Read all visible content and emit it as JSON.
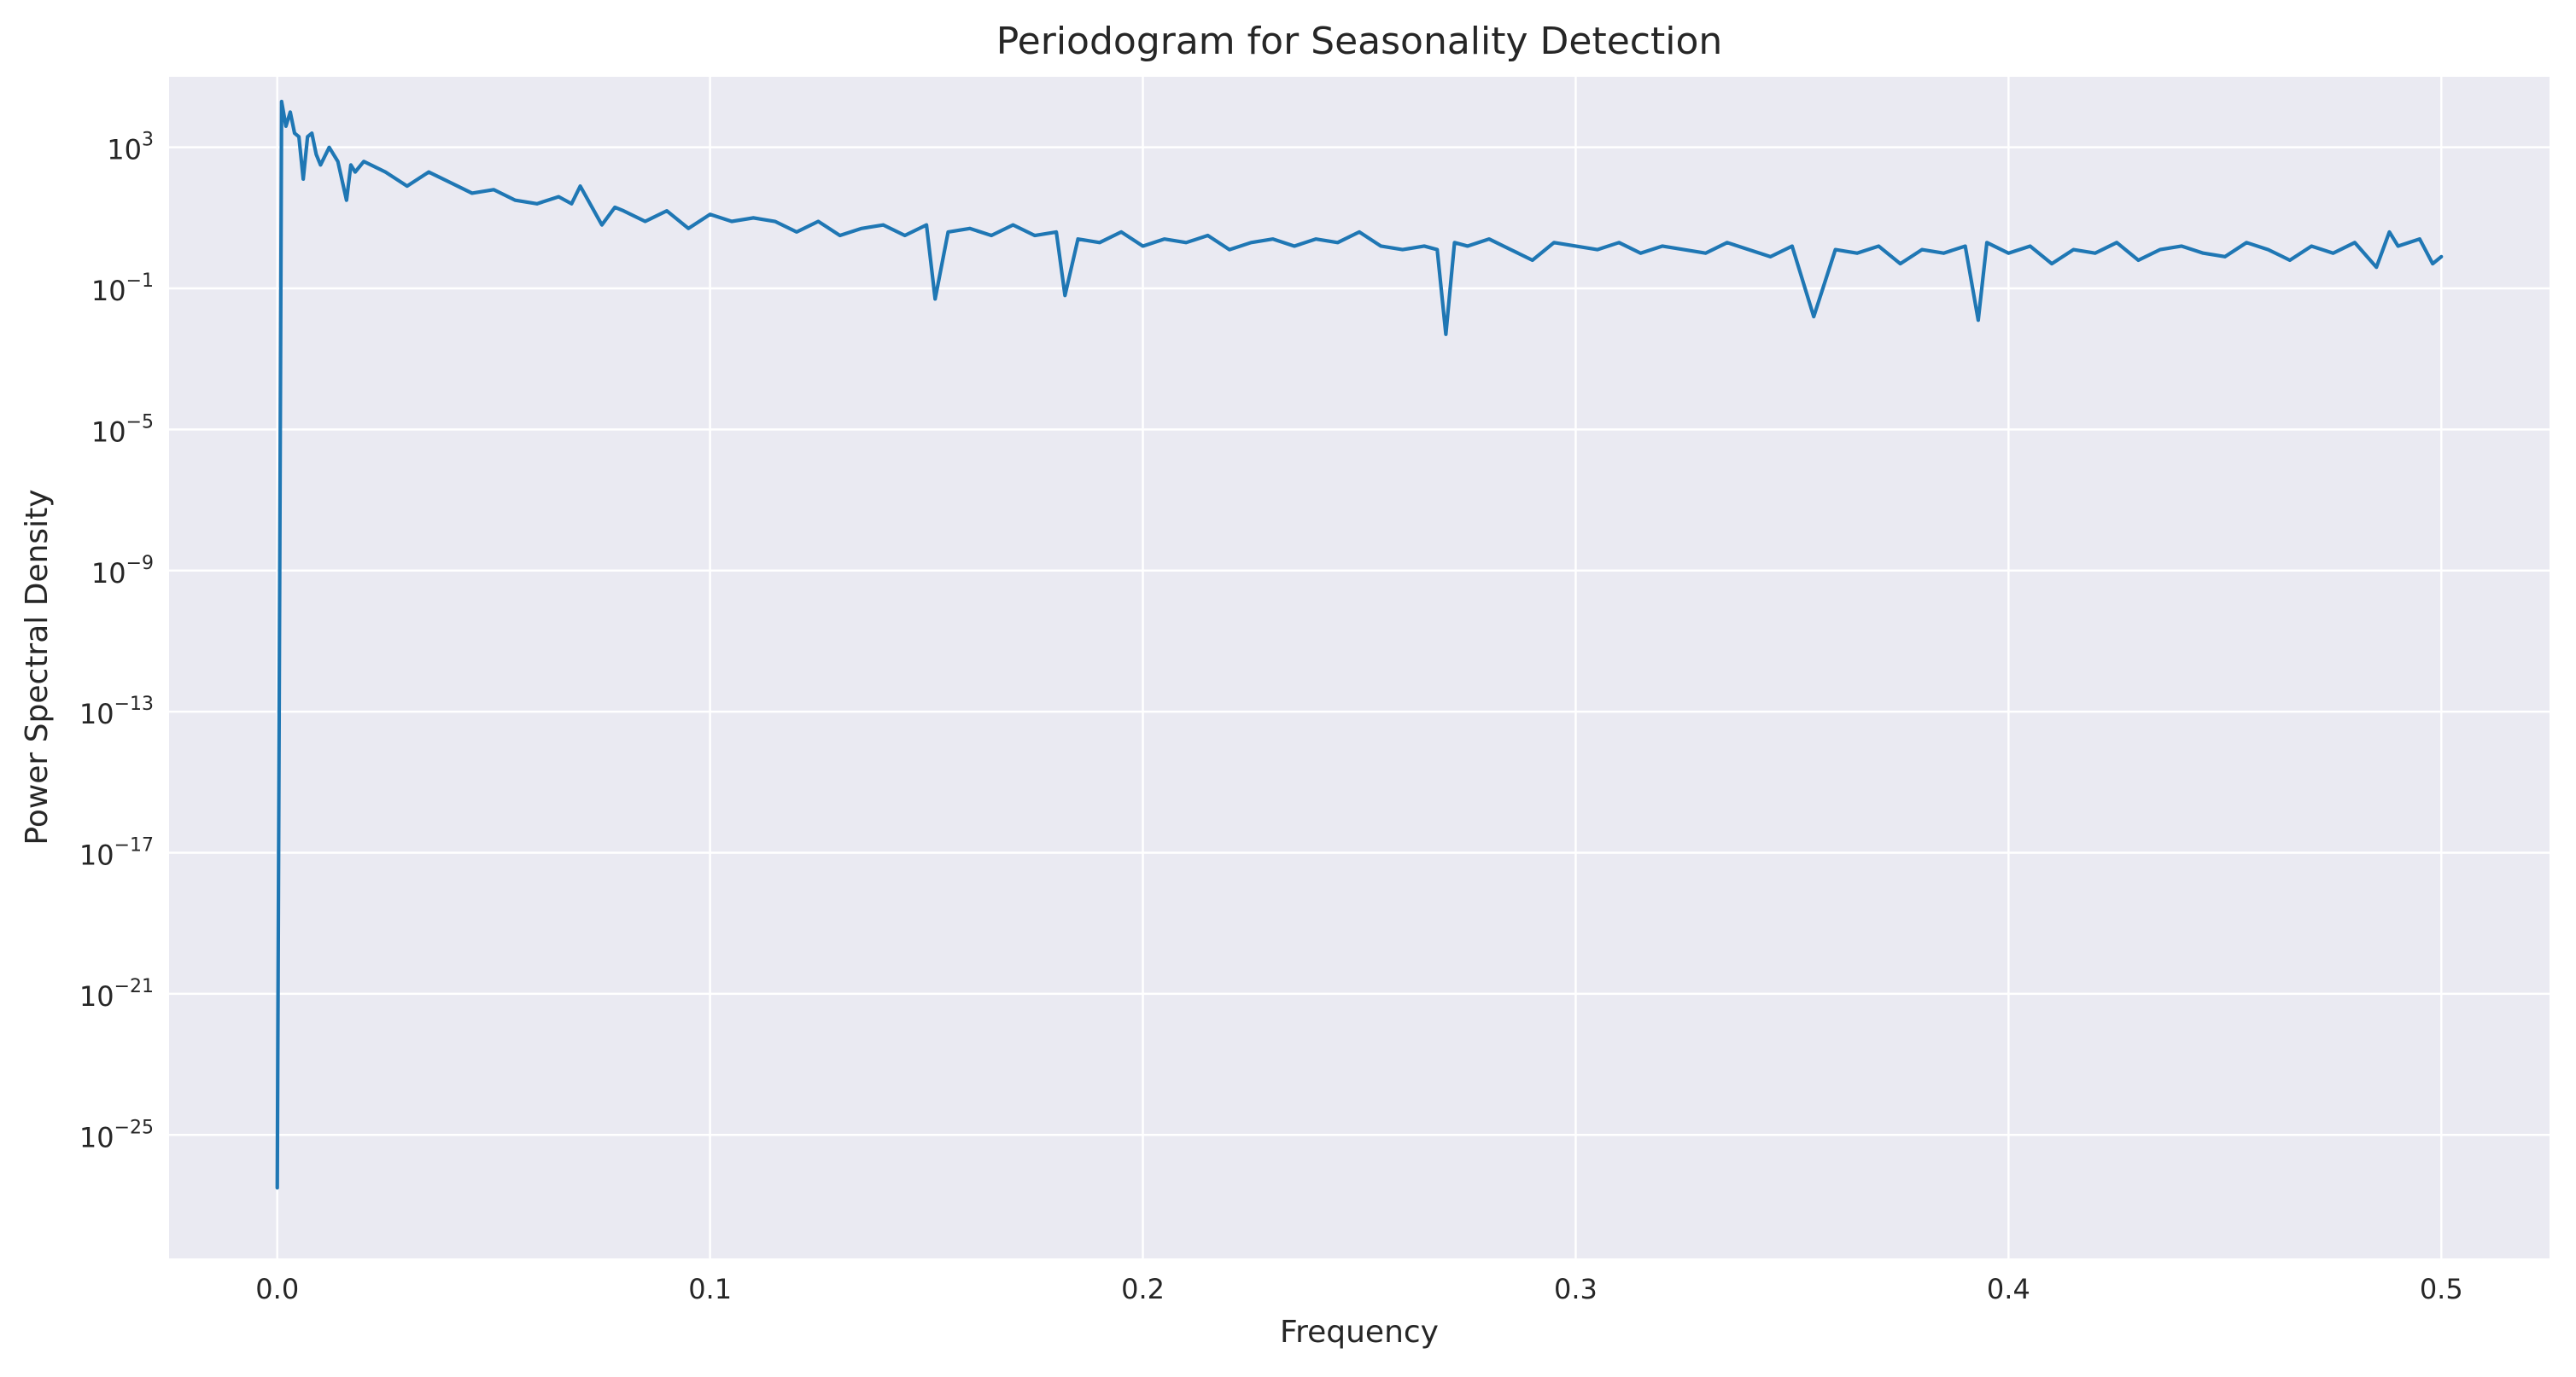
{
  "chart_data": {
    "type": "line",
    "title": "Periodogram for Seasonality Detection",
    "xlabel": "Frequency",
    "ylabel": "Power Spectral Density",
    "xlim": [
      -0.025,
      0.525
    ],
    "ylim_log10": [
      -28.5,
      5
    ],
    "yscale": "log",
    "grid": true,
    "x_ticks": [
      {
        "value": 0.0,
        "label": "0.0"
      },
      {
        "value": 0.1,
        "label": "0.1"
      },
      {
        "value": 0.2,
        "label": "0.2"
      },
      {
        "value": 0.3,
        "label": "0.3"
      },
      {
        "value": 0.4,
        "label": "0.4"
      },
      {
        "value": 0.5,
        "label": "0.5"
      }
    ],
    "y_ticks": [
      {
        "exp": 3,
        "base": "10",
        "sup": "3"
      },
      {
        "exp": -1,
        "base": "10",
        "sup": "−1"
      },
      {
        "exp": -5,
        "base": "10",
        "sup": "−5"
      },
      {
        "exp": -9,
        "base": "10",
        "sup": "−9"
      },
      {
        "exp": -13,
        "base": "10",
        "sup": "−13"
      },
      {
        "exp": -17,
        "base": "10",
        "sup": "−17"
      },
      {
        "exp": -21,
        "base": "10",
        "sup": "−21"
      },
      {
        "exp": -25,
        "base": "10",
        "sup": "−25"
      }
    ],
    "series": [
      {
        "color": "#1f77b4",
        "x": [
          0.0,
          0.001,
          0.002,
          0.003,
          0.004,
          0.005,
          0.006,
          0.007,
          0.008,
          0.009,
          0.01,
          0.012,
          0.014,
          0.016,
          0.017,
          0.018,
          0.02,
          0.025,
          0.03,
          0.035,
          0.04,
          0.045,
          0.05,
          0.055,
          0.06,
          0.065,
          0.068,
          0.07,
          0.075,
          0.078,
          0.08,
          0.085,
          0.09,
          0.095,
          0.1,
          0.105,
          0.11,
          0.115,
          0.12,
          0.125,
          0.13,
          0.135,
          0.14,
          0.145,
          0.15,
          0.152,
          0.155,
          0.16,
          0.165,
          0.17,
          0.175,
          0.18,
          0.182,
          0.185,
          0.19,
          0.195,
          0.2,
          0.205,
          0.21,
          0.215,
          0.22,
          0.225,
          0.23,
          0.235,
          0.24,
          0.245,
          0.25,
          0.255,
          0.26,
          0.265,
          0.268,
          0.27,
          0.272,
          0.275,
          0.28,
          0.285,
          0.29,
          0.295,
          0.3,
          0.305,
          0.31,
          0.315,
          0.32,
          0.325,
          0.33,
          0.335,
          0.34,
          0.345,
          0.35,
          0.355,
          0.36,
          0.365,
          0.37,
          0.375,
          0.38,
          0.385,
          0.39,
          0.393,
          0.395,
          0.4,
          0.405,
          0.41,
          0.415,
          0.42,
          0.425,
          0.43,
          0.435,
          0.44,
          0.445,
          0.45,
          0.455,
          0.46,
          0.465,
          0.47,
          0.475,
          0.48,
          0.485,
          0.488,
          0.49,
          0.495,
          0.498,
          0.5
        ],
        "y_log10": [
          -26.5,
          4.3,
          3.6,
          4.0,
          3.4,
          3.3,
          2.1,
          3.3,
          3.4,
          2.8,
          2.5,
          3.0,
          2.6,
          1.5,
          2.5,
          2.3,
          2.6,
          2.3,
          1.9,
          2.3,
          2.0,
          1.7,
          1.8,
          1.5,
          1.4,
          1.6,
          1.4,
          1.9,
          0.8,
          1.3,
          1.2,
          0.9,
          1.2,
          0.7,
          1.1,
          0.9,
          1.0,
          0.9,
          0.6,
          0.9,
          0.5,
          0.7,
          0.8,
          0.5,
          0.8,
          -1.3,
          0.6,
          0.7,
          0.5,
          0.8,
          0.5,
          0.6,
          -1.2,
          0.4,
          0.3,
          0.6,
          0.2,
          0.4,
          0.3,
          0.5,
          0.1,
          0.3,
          0.4,
          0.2,
          0.4,
          0.3,
          0.6,
          0.2,
          0.1,
          0.2,
          0.1,
          -2.3,
          0.3,
          0.2,
          0.4,
          0.1,
          -0.2,
          0.3,
          0.2,
          0.1,
          0.3,
          0.0,
          0.2,
          0.1,
          0.0,
          0.3,
          0.1,
          -0.1,
          0.2,
          -1.8,
          0.1,
          0.0,
          0.2,
          -0.3,
          0.1,
          0.0,
          0.2,
          -1.9,
          0.3,
          0.0,
          0.2,
          -0.3,
          0.1,
          0.0,
          0.3,
          -0.2,
          0.1,
          0.2,
          0.0,
          -0.1,
          0.3,
          0.1,
          -0.2,
          0.2,
          0.0,
          0.3,
          -0.4,
          0.6,
          0.2,
          0.4,
          -0.3,
          -0.1
        ]
      }
    ]
  }
}
